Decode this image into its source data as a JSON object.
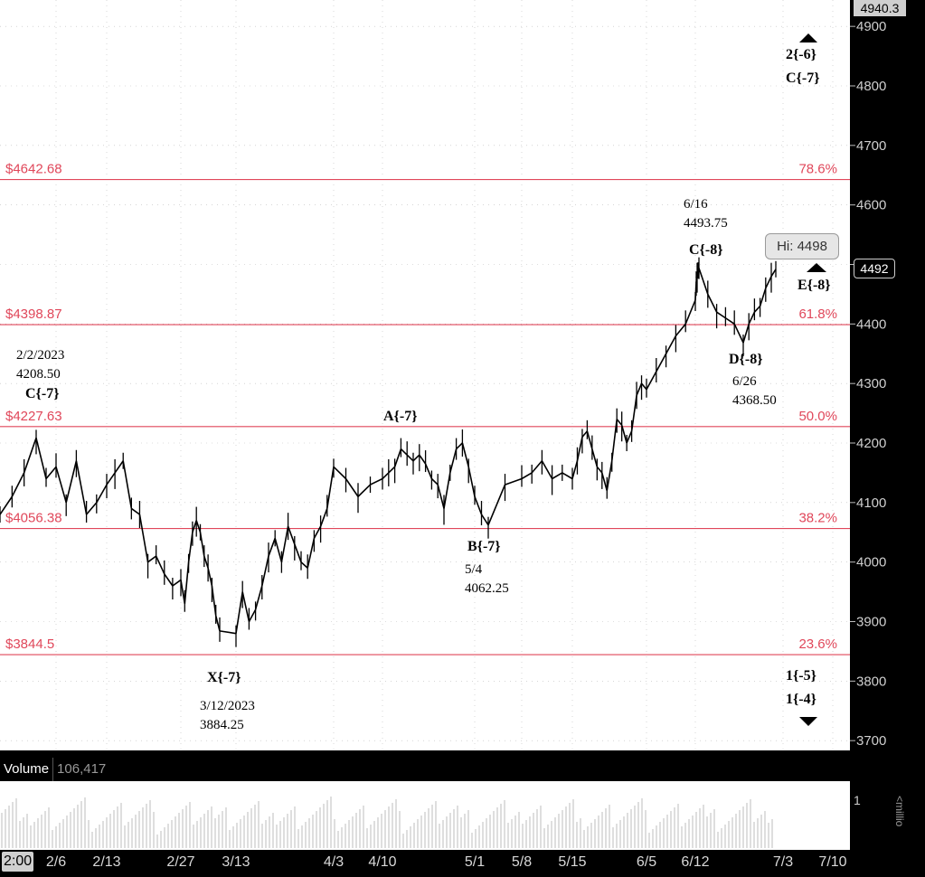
{
  "chart_data": {
    "type": "line",
    "subtype": "price-bar",
    "y_axis": {
      "ticks": [
        "4900",
        "4800",
        "4700",
        "4600",
        "4500",
        "4400",
        "4300",
        "4200",
        "4100",
        "4000",
        "3900",
        "3800",
        "3700"
      ],
      "range": [
        3690,
        4950
      ]
    },
    "x_axis": {
      "ticks": [
        "2/6",
        "2/13",
        "2/27",
        "3/13",
        "4/3",
        "4/10",
        "5/1",
        "5/8",
        "5/15",
        "6/5",
        "6/12",
        "7/3",
        "7/10"
      ]
    },
    "x_start_label": "2:00",
    "top_price_tag": "4940.3",
    "last_price_tag": "4492",
    "hi_tag": "Hi: 4498",
    "fib_levels": [
      {
        "price_label": "$4642.68",
        "pct_label": "78.6%",
        "value": 4642.68
      },
      {
        "price_label": "$4398.87",
        "pct_label": "61.8%",
        "value": 4398.87
      },
      {
        "price_label": "$4227.63",
        "pct_label": "50.0%",
        "value": 4227.63
      },
      {
        "price_label": "$4056.38",
        "pct_label": "38.2%",
        "value": 4056.38
      },
      {
        "price_label": "$3844.5",
        "pct_label": "23.6%",
        "value": 3844.5
      }
    ],
    "price_path": [
      [
        "1/30",
        4080
      ],
      [
        "1/31",
        4110
      ],
      [
        "2/1",
        4150
      ],
      [
        "2/2",
        4208.5
      ],
      [
        "2/3",
        4140
      ],
      [
        "2/6",
        4160
      ],
      [
        "2/7",
        4100
      ],
      [
        "2/8",
        4170
      ],
      [
        "2/9",
        4080
      ],
      [
        "2/10",
        4100
      ],
      [
        "2/13",
        4130
      ],
      [
        "2/14",
        4150
      ],
      [
        "2/15",
        4170
      ],
      [
        "2/16",
        4090
      ],
      [
        "2/17",
        4080
      ],
      [
        "2/21",
        4000
      ],
      [
        "2/22",
        4010
      ],
      [
        "2/23",
        3980
      ],
      [
        "2/24",
        3960
      ],
      [
        "2/27",
        3970
      ],
      [
        "2/28",
        3930
      ],
      [
        "3/1",
        4000
      ],
      [
        "3/2",
        4050
      ],
      [
        "3/3",
        4070
      ],
      [
        "3/6",
        4050
      ],
      [
        "3/7",
        4010
      ],
      [
        "3/8",
        3990
      ],
      [
        "3/9",
        3960
      ],
      [
        "3/10",
        3910
      ],
      [
        "3/12",
        3884.25
      ],
      [
        "3/13",
        3880
      ],
      [
        "3/14",
        3950
      ],
      [
        "3/15",
        3900
      ],
      [
        "3/16",
        3920
      ],
      [
        "3/17",
        3960
      ],
      [
        "3/20",
        4010
      ],
      [
        "3/21",
        4040
      ],
      [
        "3/22",
        4000
      ],
      [
        "3/23",
        4060
      ],
      [
        "3/24",
        4030
      ],
      [
        "3/27",
        4000
      ],
      [
        "3/28",
        3990
      ],
      [
        "3/29",
        4040
      ],
      [
        "3/30",
        4060
      ],
      [
        "3/31",
        4090
      ],
      [
        "4/3",
        4160
      ],
      [
        "4/4",
        4140
      ],
      [
        "4/5",
        4110
      ],
      [
        "4/6",
        4130
      ],
      [
        "4/10",
        4140
      ],
      [
        "4/11",
        4150
      ],
      [
        "4/12",
        4160
      ],
      [
        "4/13",
        4190
      ],
      [
        "4/14",
        4180
      ],
      [
        "4/17",
        4170
      ],
      [
        "4/18",
        4180
      ],
      [
        "4/19",
        4165
      ],
      [
        "4/20",
        4140
      ],
      [
        "4/21",
        4130
      ],
      [
        "4/24",
        4090
      ],
      [
        "4/25",
        4150
      ],
      [
        "4/26",
        4190
      ],
      [
        "4/27",
        4200
      ],
      [
        "4/28",
        4160
      ],
      [
        "5/1",
        4110
      ],
      [
        "5/2",
        4080
      ],
      [
        "5/4",
        4062.25
      ],
      [
        "5/5",
        4130
      ],
      [
        "5/8",
        4140
      ],
      [
        "5/9",
        4150
      ],
      [
        "5/10",
        4170
      ],
      [
        "5/11",
        4140
      ],
      [
        "5/12",
        4150
      ],
      [
        "5/15",
        4140
      ],
      [
        "5/16",
        4170
      ],
      [
        "5/17",
        4210
      ],
      [
        "5/18",
        4220
      ],
      [
        "5/19",
        4190
      ],
      [
        "5/22",
        4160
      ],
      [
        "5/23",
        4150
      ],
      [
        "5/24",
        4120
      ],
      [
        "5/25",
        4170
      ],
      [
        "5/26",
        4240
      ],
      [
        "5/29",
        4230
      ],
      [
        "5/30",
        4200
      ],
      [
        "5/31",
        4220
      ],
      [
        "6/1",
        4280
      ],
      [
        "6/2",
        4300
      ],
      [
        "6/5",
        4290
      ],
      [
        "6/6",
        4320
      ],
      [
        "6/7",
        4350
      ],
      [
        "6/8",
        4380
      ],
      [
        "6/9",
        4400
      ],
      [
        "6/12",
        4440
      ],
      [
        "6/13",
        4470
      ],
      [
        "6/14",
        4480
      ],
      [
        "6/15",
        4490
      ],
      [
        "6/16",
        4493.75
      ],
      [
        "6/20",
        4450
      ],
      [
        "6/21",
        4420
      ],
      [
        "6/22",
        4410
      ],
      [
        "6/23",
        4400
      ],
      [
        "6/26",
        4368.5
      ],
      [
        "6/27",
        4400
      ],
      [
        "6/28",
        4420
      ],
      [
        "6/29",
        4430
      ],
      [
        "6/30",
        4460
      ],
      [
        "7/3",
        4480
      ],
      [
        "7/4",
        4492
      ]
    ],
    "annotations": [
      {
        "lines": [
          "2/2/2023",
          "4208.50"
        ],
        "bold_line": "C{-7}",
        "bold_first": false
      },
      {
        "lines": [],
        "bold_line": "A{-7}",
        "bold_first": true
      },
      {
        "lines": [
          "5/4",
          "4062.25"
        ],
        "bold_line": "B{-7}",
        "bold_first": true
      },
      {
        "lines": [
          "3/12/2023",
          "3884.25"
        ],
        "bold_line": "X{-7}",
        "bold_first": true
      },
      {
        "lines": [
          "6/16",
          "4493.75"
        ],
        "bold_line": "C{-8}",
        "bold_first": false
      },
      {
        "lines": [
          "6/26",
          "4368.50"
        ],
        "bold_line": "D{-8}",
        "bold_first": true
      },
      {
        "lines": [],
        "bold_line": "E{-8}",
        "bold_first": true
      },
      {
        "lines": [],
        "bold_line": "2{-6}",
        "bold_first": true,
        "extra": "C{-7}"
      },
      {
        "lines": [],
        "bold_line": "1{-5}",
        "bold_first": true,
        "extra": "1{-4}"
      }
    ],
    "volume": {
      "label": "Volume",
      "value": "106,417",
      "axis_tick": "1",
      "unit": "<millio"
    }
  }
}
